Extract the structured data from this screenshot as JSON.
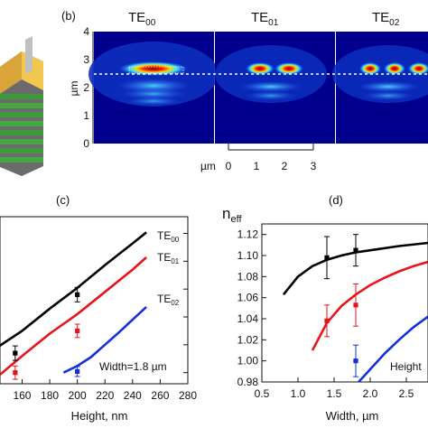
{
  "panels": {
    "b": {
      "label": "(b)",
      "modes": [
        "TE",
        "TE",
        "TE"
      ],
      "mode_subs": [
        "00",
        "01",
        "02"
      ],
      "ylabel": "µm",
      "yticks": [
        "0",
        "1",
        "2",
        "3",
        "4"
      ],
      "scale_label": "µm",
      "scale_ticks": [
        "0",
        "1",
        "2",
        "3"
      ]
    },
    "c": {
      "label": "(c)",
      "xlabel": "Height, nm",
      "note": "Width=1.8 µm",
      "xticks": [
        "160",
        "180",
        "200",
        "220",
        "240",
        "260",
        "280"
      ],
      "curve_labels": [
        {
          "base": "TE",
          "sub": "00"
        },
        {
          "base": "TE",
          "sub": "01"
        },
        {
          "base": "TE",
          "sub": "02"
        }
      ]
    },
    "d": {
      "label": "(d)",
      "ylabel_base": "n",
      "ylabel_sub": "eff",
      "xlabel": "Width, µm",
      "note": "Height",
      "xticks": [
        "0.5",
        "1.0",
        "1.5",
        "2.0",
        "2.5"
      ],
      "yticks": [
        "0.98",
        "1.00",
        "1.02",
        "1.04",
        "1.06",
        "1.08",
        "1.10",
        "1.12"
      ]
    }
  },
  "colors": {
    "TE00": "#000000",
    "TE01": "#e8141c",
    "TE02": "#1530d8"
  },
  "chart_data": [
    {
      "type": "line",
      "panel": "c",
      "xlabel": "Height, nm",
      "xlim": [
        140,
        280
      ],
      "series": [
        {
          "name": "TE00",
          "x": [
            140,
            160,
            180,
            200,
            220,
            240,
            250
          ],
          "y": [
            0.62,
            0.95,
            1.35,
            1.72,
            2.13,
            2.52,
            2.72
          ]
        },
        {
          "name": "TE01",
          "x": [
            140,
            160,
            180,
            200,
            220,
            240,
            250
          ],
          "y": [
            0.08,
            0.5,
            0.9,
            1.25,
            1.65,
            2.05,
            2.27
          ]
        },
        {
          "name": "TE02",
          "x": [
            190,
            200,
            210,
            220,
            230,
            240,
            250
          ],
          "y": [
            0.2,
            0.32,
            0.48,
            0.7,
            0.92,
            1.15,
            1.38
          ]
        }
      ],
      "measured": [
        {
          "series": "TE00",
          "x": [
            155,
            200
          ],
          "y": [
            0.55,
            1.6
          ],
          "err": [
            0.13,
            0.13
          ]
        },
        {
          "series": "TE01",
          "x": [
            155,
            200
          ],
          "y": [
            0.2,
            0.95
          ],
          "err": [
            0.12,
            0.12
          ]
        },
        {
          "series": "TE02",
          "x": [
            200
          ],
          "y": [
            0.22
          ],
          "err": [
            0.09
          ]
        }
      ]
    },
    {
      "type": "line",
      "panel": "d",
      "xlabel": "Width, µm",
      "ylabel": "n_eff",
      "xlim": [
        0.5,
        2.8
      ],
      "ylim": [
        0.98,
        1.13
      ],
      "series": [
        {
          "name": "TE00",
          "x": [
            0.8,
            1.0,
            1.2,
            1.4,
            1.6,
            1.8,
            2.0,
            2.4,
            2.8
          ],
          "y": [
            1.063,
            1.08,
            1.09,
            1.096,
            1.1,
            1.103,
            1.105,
            1.109,
            1.112
          ]
        },
        {
          "name": "TE01",
          "x": [
            1.2,
            1.4,
            1.6,
            1.8,
            2.0,
            2.2,
            2.4,
            2.6,
            2.8
          ],
          "y": [
            1.01,
            1.036,
            1.052,
            1.063,
            1.072,
            1.079,
            1.085,
            1.09,
            1.094
          ]
        },
        {
          "name": "TE02",
          "x": [
            1.8,
            2.0,
            2.2,
            2.4,
            2.6,
            2.8
          ],
          "y": [
            0.977,
            0.992,
            1.007,
            1.02,
            1.032,
            1.042
          ]
        }
      ],
      "measured": [
        {
          "series": "TE00",
          "x": [
            1.4,
            1.8
          ],
          "y": [
            1.098,
            1.105
          ],
          "err": [
            0.02,
            0.015
          ]
        },
        {
          "series": "TE01",
          "x": [
            1.4,
            1.8
          ],
          "y": [
            1.038,
            1.053
          ],
          "err": [
            0.015,
            0.02
          ]
        },
        {
          "series": "TE02",
          "x": [
            1.8
          ],
          "y": [
            1.0
          ],
          "err": [
            0.015
          ]
        }
      ]
    }
  ]
}
